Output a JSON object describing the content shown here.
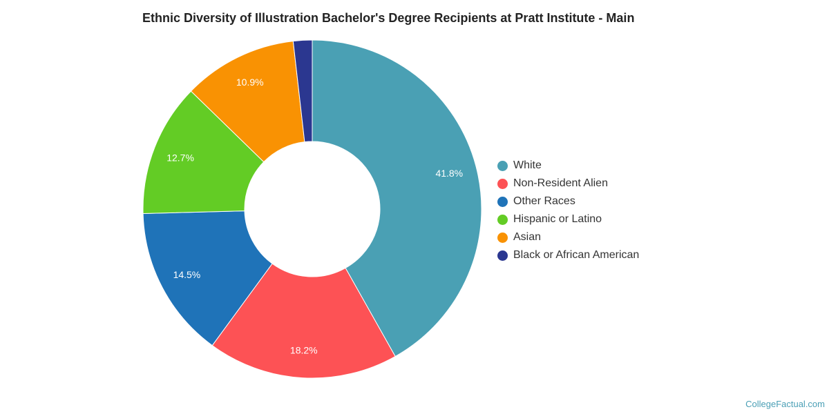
{
  "chart_data": {
    "type": "pie",
    "title": "Ethnic Diversity of Illustration Bachelor's Degree Recipients at Pratt Institute - Main",
    "donut": true,
    "legend_position": "right",
    "slices": [
      {
        "name": "White",
        "value": 41.8,
        "label": "41.8%",
        "color": "#4aa0b4"
      },
      {
        "name": "Non-Resident Alien",
        "value": 18.2,
        "label": "18.2%",
        "color": "#fd5255"
      },
      {
        "name": "Other Races",
        "value": 14.5,
        "label": "14.5%",
        "color": "#1f73b8"
      },
      {
        "name": "Hispanic or Latino",
        "value": 12.7,
        "label": "12.7%",
        "color": "#63cc25"
      },
      {
        "name": "Asian",
        "value": 10.9,
        "label": "10.9%",
        "color": "#f99203"
      },
      {
        "name": "Black or African American",
        "value": 1.8,
        "label": "",
        "color": "#2b3790"
      }
    ]
  },
  "credit": "CollegeFactual.com"
}
